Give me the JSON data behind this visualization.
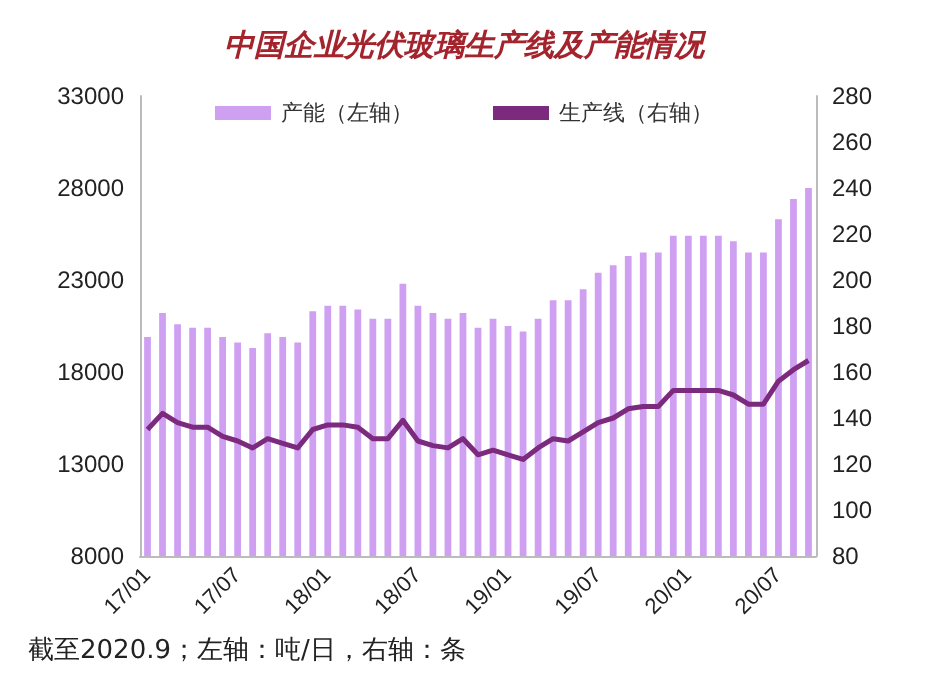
{
  "chart_data": {
    "type": "bar",
    "title": "中国企业光伏玻璃生产线及产能情况",
    "categories": [
      "17/01",
      null,
      null,
      null,
      null,
      null,
      "17/07",
      null,
      null,
      null,
      null,
      null,
      "18/01",
      null,
      null,
      null,
      null,
      null,
      "18/07",
      null,
      null,
      null,
      null,
      null,
      "19/01",
      null,
      null,
      null,
      null,
      null,
      "19/07",
      null,
      null,
      null,
      null,
      null,
      "20/01",
      null,
      null,
      null,
      null,
      null,
      "20/07",
      null,
      null
    ],
    "series": [
      {
        "name": "产能（左轴）",
        "color": "#cf9ff2",
        "values": [
          19900,
          21200,
          20600,
          20400,
          20400,
          19900,
          19600,
          19300,
          20100,
          19900,
          19600,
          21300,
          21600,
          21600,
          21400,
          20900,
          20900,
          22800,
          21600,
          21200,
          20900,
          21200,
          20400,
          20900,
          20500,
          20200,
          20900,
          21900,
          21900,
          22500,
          23400,
          23800,
          24300,
          24500,
          24500,
          25400,
          25400,
          25400,
          25400,
          25100,
          24500,
          24500,
          26300,
          27400,
          28000
        ]
      },
      {
        "name": "生产线（右轴）",
        "type": "line",
        "axis": "y2",
        "color": "#7b2a7e",
        "values": [
          135,
          142,
          138,
          136,
          136,
          132,
          130,
          127,
          131,
          129,
          127,
          135,
          137,
          137,
          136,
          131,
          131,
          139,
          130,
          128,
          127,
          131,
          124,
          126,
          124,
          122,
          127,
          131,
          130,
          134,
          138,
          140,
          144,
          145,
          145,
          152,
          152,
          152,
          152,
          150,
          146,
          146,
          156,
          161,
          165
        ]
      }
    ],
    "ylim": [
      8000,
      33000
    ],
    "yticks": [
      8000,
      13000,
      18000,
      23000,
      28000,
      33000
    ],
    "y2lim": [
      80,
      280
    ],
    "y2ticks": [
      80,
      100,
      120,
      140,
      160,
      180,
      200,
      220,
      240,
      260,
      280
    ],
    "grid": false,
    "legend": "top",
    "marker": "none",
    "line_style": "solid",
    "annotations": [
      "截至2020.9；左轴：吨/日，右轴：条"
    ]
  }
}
